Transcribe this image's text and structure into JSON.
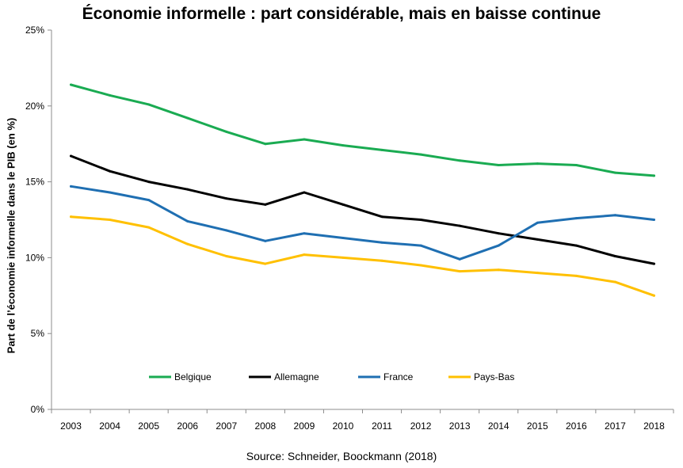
{
  "chart_data": {
    "type": "line",
    "title": "Économie informelle : part considérable, mais en baisse continue",
    "xlabel": "",
    "ylabel": "Part de l’économie informelle dans le PIB (en %)",
    "source": "Source:  Schneider, Boockmann (2018)",
    "x": [
      "2003",
      "2004",
      "2005",
      "2006",
      "2007",
      "2008",
      "2009",
      "2010",
      "2011",
      "2012",
      "2013",
      "2014",
      "2015",
      "2016",
      "2017",
      "2018"
    ],
    "ylim": [
      0,
      25
    ],
    "yticks": [
      0,
      5,
      10,
      15,
      20,
      25
    ],
    "ytick_labels": [
      "0%",
      "5%",
      "10%",
      "15%",
      "20%",
      "25%"
    ],
    "grid": false,
    "legend_position": "bottom-inside",
    "series": [
      {
        "name": "Belgique",
        "color": "#1aab52",
        "values": [
          21.4,
          20.7,
          20.1,
          19.2,
          18.3,
          17.5,
          17.8,
          17.4,
          17.1,
          16.8,
          16.4,
          16.1,
          16.2,
          16.1,
          15.6,
          15.4
        ]
      },
      {
        "name": "Allemagne",
        "color": "#000000",
        "values": [
          16.7,
          15.7,
          15.0,
          14.5,
          13.9,
          13.5,
          14.3,
          13.5,
          12.7,
          12.5,
          12.1,
          11.6,
          11.2,
          10.8,
          10.1,
          9.6
        ]
      },
      {
        "name": "France",
        "color": "#1f6fb2",
        "values": [
          14.7,
          14.3,
          13.8,
          12.4,
          11.8,
          11.1,
          11.6,
          11.3,
          11.0,
          10.8,
          9.9,
          10.8,
          12.3,
          12.6,
          12.8,
          12.5
        ]
      },
      {
        "name": "Pays-Bas",
        "color": "#ffc000",
        "values": [
          12.7,
          12.5,
          12.0,
          10.9,
          10.1,
          9.6,
          10.2,
          10.0,
          9.8,
          9.5,
          9.1,
          9.2,
          9.0,
          8.8,
          8.4,
          7.5
        ]
      }
    ]
  }
}
